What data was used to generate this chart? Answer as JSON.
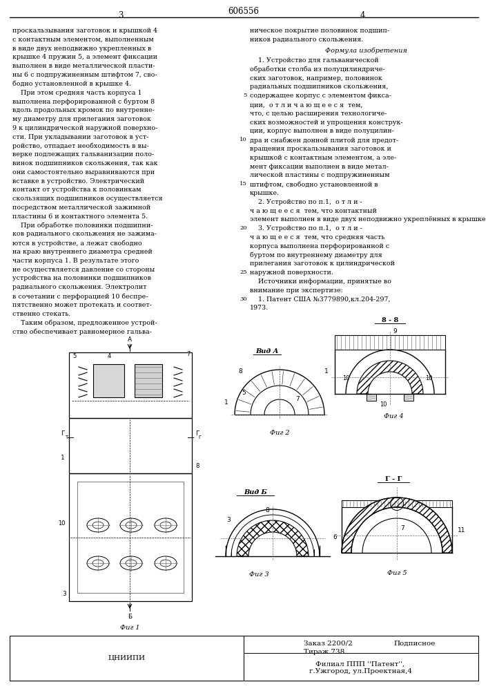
{
  "patent_number": "606556",
  "page_left": "3",
  "page_right": "4",
  "background_color": "#ffffff",
  "text_color": "#000000",
  "left_col_lines": [
    "проскальзывания заготовок и крышкой 4",
    "с контактным элементом, выполненным",
    "в виде двух неподвижно укрепленных в",
    "крышке 4 пружин 5, а элемент фиксации",
    "выполнен в виде металлической пласти-",
    "ны 6 с подпружиненным штифтом 7, сво-",
    "бодно установленной в крышке 4.",
    "    При этом средняя часть корпуса 1",
    "выполнена перфорированной с буртом 8",
    "вдоль продольных кромок по внутренне-",
    "му диаметру для прилегания заготовок",
    "9 к цилиндрической наружной поверхно-",
    "сти. При укладывании заготовок в уст-",
    "ройство, отпадает необходимость в вы-",
    "верке подлежащих гальванизации поло-",
    "винок подшипников скольжения, так как",
    "они самостоятельно выравниваются при",
    "вставке в устройство. Электрический",
    "контакт от устройства к половинкам",
    "скользящих подшипников осуществляется",
    "посредством металлической зажимной",
    "пластины 6 и контактного элемента 5.",
    "    При обработке половинки подшипни-",
    "ков радиального скольжения не зажима-",
    "ются в устройстве, а лежат свободно",
    "на краю внутреннего диаметра средней",
    "части корпуса 1. В результате этого",
    "не осуществляется давление со стороны",
    "устройства на половинки подшипников",
    "радиального скольжения. Электролит",
    "в сочетании с перфорацией 10 беспре-",
    "пятственно может протекать и соответ-",
    "ственно стекать.",
    "    Таким образом, предложенное устрой-",
    "ство обеспечивает равномерное гальва-"
  ],
  "right_col_top": [
    "ническое покрытие половинок подшип-",
    "ников радиального скольжения."
  ],
  "formula_header": "Формула изобретения",
  "right_col_formula": [
    "    1. Устройство для гальванической",
    "обработки столба из полуцилиндриче-",
    "ских заготовок, например, половинок",
    "радиальных подшипников скольжения,",
    "содержащее корпус с элементом фикса-",
    "ции,  о т л и ч а ю щ е е с я  тем,",
    "что, с целью расширения технологиче-",
    "ских возможностей и упрощения конструк-",
    "ции, корпус выполнен в виде полуцилин-",
    "дра и снабжен донной плитой для предот-",
    "вращения проскальзывания заготовок и",
    "крышкой с контактным элементом, а эле-",
    "мент фиксации выполнен в виде метал-",
    "лической пластины с подпружиненным",
    "штифтом, свободно установленной в",
    "крышке.",
    "    2. Устройство по п.1,  о т л и -",
    "ч а ю щ е е с я  тем, что контактный",
    "элемент выполнен в виде двух неподвижно укреплённых в крышке пружин.",
    "    3. Устройство по п.1,  о т л и -",
    "ч а ю щ е е с я  тем, что средняя часть",
    "корпуса выполнена перфорированной с",
    "буртом по внутреннему диаметру для",
    "прилегания заготовок к цилиндрической",
    "наружной поверхности.",
    "    Источники информации, принятые во",
    "внимание при экспертизе:",
    "    1. Патент США №3779890,кл.204-297,",
    "1973."
  ],
  "line_numbers": [
    {
      "num": "5",
      "row": 4
    },
    {
      "num": "10",
      "row": 9
    },
    {
      "num": "15",
      "row": 14
    },
    {
      "num": "20",
      "row": 19
    },
    {
      "num": "25",
      "row": 24
    },
    {
      "num": "30",
      "row": 27
    }
  ],
  "bottom_left_label": "ЦНИИПИ",
  "bottom_zakaz": "Заказ 2200/2",
  "bottom_tirazh": "Тираж 738",
  "bottom_podpisnoe": "Подписное",
  "bottom_filial": "Филиал ППП ''Патент'',",
  "bottom_uzhgorod": "г.Ужгород, ул.Проектная,4"
}
